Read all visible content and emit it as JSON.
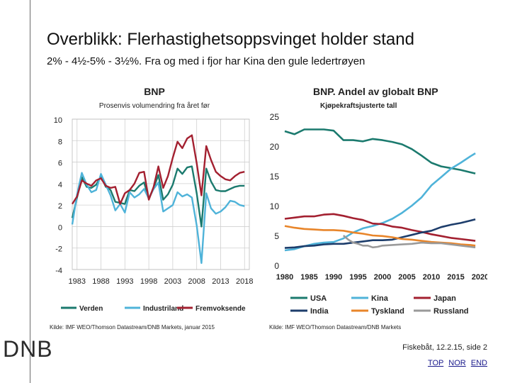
{
  "slide": {
    "title": "Overblikk: Flerhastighetsoppsvinget holder stand",
    "subtitle": "2% - 4½-5% - 3½%. Fra og med i fjor har Kina den gule ledertrøyen",
    "logo": "DNB",
    "footer": "Fiskebåt, 12.2.15, side 2",
    "nav": [
      "TOP",
      "NOR",
      "END"
    ]
  },
  "colors": {
    "teal": "#1b7a6e",
    "lightblue": "#4fb3d9",
    "darkred": "#a32030",
    "navy": "#1d3d6b",
    "orange": "#e8852a",
    "gray": "#9a9a9a"
  },
  "chart_data": [
    {
      "type": "line",
      "title": "BNP",
      "subtitle": "Prosenvis volumendring fra året før",
      "source": "Kilde: IMF WEO/Thomson Datastream/DNB Markets, januar 2015",
      "ylim": [
        -4,
        10
      ],
      "yticks": [
        "10",
        "8",
        "6",
        "4",
        "2",
        "0",
        "-2",
        "-4"
      ],
      "xlim": [
        1982,
        2019
      ],
      "xticks": [
        "1983",
        "1988",
        "1993",
        "1998",
        "2003",
        "2008",
        "2013",
        "2018"
      ],
      "grid": true,
      "legend": "bottom",
      "series": [
        {
          "name": "Verden",
          "color": "teal",
          "x": [
            1982,
            1983,
            1984,
            1985,
            1986,
            1987,
            1988,
            1989,
            1990,
            1991,
            1992,
            1993,
            1994,
            1995,
            1996,
            1997,
            1998,
            1999,
            2000,
            2001,
            2002,
            2003,
            2004,
            2005,
            2006,
            2007,
            2008,
            2009,
            2010,
            2011,
            2012,
            2013,
            2014,
            2015,
            2016,
            2017,
            2018
          ],
          "values": [
            0.8,
            2.7,
            4.6,
            3.7,
            3.6,
            3.9,
            4.7,
            3.7,
            3.4,
            2.3,
            2.2,
            2.1,
            3.4,
            3.3,
            3.8,
            4.1,
            2.6,
            3.6,
            4.8,
            2.5,
            3.0,
            3.9,
            5.4,
            4.9,
            5.5,
            5.6,
            3.1,
            0.0,
            5.4,
            4.2,
            3.4,
            3.3,
            3.3,
            3.5,
            3.7,
            3.8,
            3.8
          ]
        },
        {
          "name": "Industriland",
          "color": "lightblue",
          "x": [
            1982,
            1983,
            1984,
            1985,
            1986,
            1987,
            1988,
            1989,
            1990,
            1991,
            1992,
            1993,
            1994,
            1995,
            1996,
            1997,
            1998,
            1999,
            2000,
            2001,
            2002,
            2003,
            2004,
            2005,
            2006,
            2007,
            2008,
            2009,
            2010,
            2011,
            2012,
            2013,
            2014,
            2015,
            2016,
            2017,
            2018
          ],
          "values": [
            0.2,
            3.0,
            5.0,
            3.9,
            3.2,
            3.4,
            4.9,
            3.9,
            2.9,
            1.5,
            2.1,
            1.3,
            3.2,
            2.7,
            3.0,
            3.5,
            2.6,
            3.5,
            4.1,
            1.4,
            1.7,
            2.0,
            3.2,
            2.8,
            3.0,
            2.7,
            0.1,
            -3.4,
            3.1,
            1.7,
            1.2,
            1.4,
            1.8,
            2.4,
            2.3,
            2.0,
            1.9
          ]
        },
        {
          "name": "Fremvoksende",
          "color": "darkred",
          "x": [
            1982,
            1983,
            1984,
            1985,
            1986,
            1987,
            1988,
            1989,
            1990,
            1991,
            1992,
            1993,
            1994,
            1995,
            1996,
            1997,
            1998,
            1999,
            2000,
            2001,
            2002,
            2003,
            2004,
            2005,
            2006,
            2007,
            2008,
            2009,
            2010,
            2011,
            2012,
            2013,
            2014,
            2015,
            2016,
            2017,
            2018
          ],
          "values": [
            2.1,
            2.8,
            4.3,
            4.0,
            3.8,
            4.3,
            4.5,
            3.8,
            3.6,
            3.7,
            2.1,
            3.1,
            3.4,
            4.0,
            5.0,
            5.1,
            2.5,
            3.7,
            5.6,
            3.6,
            4.7,
            6.4,
            7.9,
            7.3,
            8.2,
            8.5,
            5.9,
            2.9,
            7.5,
            6.2,
            5.1,
            4.7,
            4.4,
            4.3,
            4.7,
            5.0,
            5.1
          ]
        }
      ]
    },
    {
      "type": "line",
      "title": "BNP. Andel av globalt BNP",
      "subtitle": "Kjøpekraftsjusterte tall",
      "source": "Kilde: IMF WEO/Thomson Datastream/DNB Markets",
      "ylim": [
        0,
        25
      ],
      "yticks": [
        "25",
        "20",
        "15",
        "10",
        "5",
        "0"
      ],
      "xlim": [
        1980,
        2020
      ],
      "xticks": [
        "1980",
        "1985",
        "1990",
        "1995",
        "2000",
        "2005",
        "2010",
        "2015",
        "2020"
      ],
      "grid": false,
      "legend": "bottom",
      "series": [
        {
          "name": "USA",
          "color": "teal",
          "x": [
            1980,
            1982,
            1984,
            1986,
            1988,
            1990,
            1992,
            1994,
            1996,
            1998,
            2000,
            2002,
            2004,
            2006,
            2008,
            2010,
            2012,
            2014,
            2016,
            2018,
            2019
          ],
          "values": [
            22.5,
            22.0,
            22.8,
            22.8,
            22.8,
            22.6,
            21.0,
            21.0,
            20.8,
            21.2,
            21.0,
            20.7,
            20.3,
            19.5,
            18.4,
            17.2,
            16.6,
            16.3,
            16.0,
            15.6,
            15.4
          ]
        },
        {
          "name": "Kina",
          "color": "lightblue",
          "x": [
            1980,
            1982,
            1984,
            1986,
            1988,
            1990,
            1992,
            1994,
            1996,
            1998,
            2000,
            2002,
            2004,
            2006,
            2008,
            2010,
            2012,
            2014,
            2016,
            2018,
            2019
          ],
          "values": [
            2.5,
            2.7,
            3.2,
            3.6,
            3.8,
            3.9,
            4.5,
            5.5,
            6.2,
            6.6,
            7.1,
            7.8,
            8.8,
            10.0,
            11.4,
            13.4,
            14.8,
            16.2,
            17.2,
            18.3,
            18.8
          ]
        },
        {
          "name": "Japan",
          "color": "darkred",
          "x": [
            1980,
            1982,
            1984,
            1986,
            1988,
            1990,
            1992,
            1994,
            1996,
            1998,
            2000,
            2002,
            2004,
            2006,
            2008,
            2010,
            2012,
            2014,
            2016,
            2018,
            2019
          ],
          "values": [
            7.8,
            8.0,
            8.2,
            8.2,
            8.5,
            8.6,
            8.3,
            7.9,
            7.6,
            7.0,
            6.9,
            6.5,
            6.3,
            5.9,
            5.6,
            5.2,
            4.9,
            4.6,
            4.4,
            4.2,
            4.1
          ]
        },
        {
          "name": "India",
          "color": "navy",
          "x": [
            1980,
            1982,
            1984,
            1986,
            1988,
            1990,
            1992,
            1994,
            1996,
            1998,
            2000,
            2002,
            2004,
            2006,
            2008,
            2010,
            2012,
            2014,
            2016,
            2018,
            2019
          ],
          "values": [
            2.9,
            3.0,
            3.2,
            3.3,
            3.5,
            3.6,
            3.6,
            3.8,
            4.0,
            4.2,
            4.2,
            4.3,
            4.7,
            5.1,
            5.5,
            5.8,
            6.4,
            6.8,
            7.1,
            7.5,
            7.7
          ]
        },
        {
          "name": "Tyskland",
          "color": "orange",
          "x": [
            1980,
            1982,
            1984,
            1986,
            1988,
            1990,
            1992,
            1994,
            1996,
            1998,
            2000,
            2002,
            2004,
            2006,
            2008,
            2010,
            2012,
            2014,
            2016,
            2018,
            2019
          ],
          "values": [
            6.6,
            6.3,
            6.1,
            6.0,
            5.9,
            5.9,
            5.8,
            5.5,
            5.3,
            5.0,
            4.9,
            4.7,
            4.4,
            4.3,
            4.1,
            3.9,
            3.8,
            3.7,
            3.5,
            3.4,
            3.3
          ]
        },
        {
          "name": "Russland",
          "color": "gray",
          "x": [
            1992,
            1993,
            1994,
            1995,
            1996,
            1997,
            1998,
            1999,
            2000,
            2002,
            2004,
            2006,
            2008,
            2010,
            2012,
            2014,
            2016,
            2018,
            2019
          ],
          "values": [
            5.0,
            4.3,
            3.8,
            3.6,
            3.3,
            3.3,
            3.0,
            3.1,
            3.3,
            3.4,
            3.5,
            3.6,
            3.8,
            3.7,
            3.7,
            3.5,
            3.3,
            3.1,
            3.0
          ]
        }
      ]
    }
  ]
}
